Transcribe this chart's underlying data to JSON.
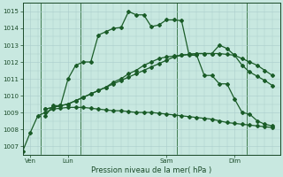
{
  "title": "Pression niveau de la mer( hPa )",
  "bg_color": "#c8e8e0",
  "plot_bg": "#c8e8e0",
  "grid_color": "#aacccc",
  "line_color": "#1a5c28",
  "ylim": [
    1006.5,
    1015.5
  ],
  "yticks": [
    1007,
    1008,
    1009,
    1010,
    1011,
    1012,
    1013,
    1014,
    1015
  ],
  "xlim": [
    0,
    17
  ],
  "day_labels": [
    "Ven",
    "Lun",
    "Sam",
    "Dim"
  ],
  "day_positions": [
    0.5,
    3.0,
    9.5,
    14.0
  ],
  "vline_positions": [
    1.2,
    3.8,
    10.2,
    14.8
  ],
  "series1_x": [
    0,
    0.5,
    1.0,
    1.5,
    2.0,
    2.5,
    3.0,
    3.5,
    4.0,
    4.5,
    5.0,
    5.5,
    6.0,
    6.5,
    7.0,
    7.5,
    8.0,
    8.5,
    9.0,
    9.5,
    10.0,
    10.5,
    11.0,
    11.5,
    12.0,
    12.5,
    13.0,
    13.5,
    14.0,
    14.5,
    15.0,
    15.5,
    16.0,
    16.5
  ],
  "series1_y": [
    1006.7,
    1007.8,
    1008.8,
    1009.0,
    1009.2,
    1009.25,
    1009.3,
    1009.3,
    1009.3,
    1009.25,
    1009.2,
    1009.15,
    1009.1,
    1009.1,
    1009.05,
    1009.0,
    1009.0,
    1009.0,
    1008.95,
    1008.9,
    1008.85,
    1008.8,
    1008.75,
    1008.7,
    1008.65,
    1008.6,
    1008.5,
    1008.4,
    1008.35,
    1008.3,
    1008.25,
    1008.2,
    1008.15,
    1008.1
  ],
  "series2_x": [
    1.5,
    2.0,
    2.5,
    3.0,
    3.5,
    4.0,
    4.5,
    5.0,
    5.5,
    6.0,
    6.5,
    7.0,
    7.5,
    8.0,
    8.5,
    9.0,
    9.5,
    10.0,
    10.5,
    11.0,
    11.5,
    12.0,
    12.5,
    13.0,
    13.5,
    14.0,
    14.5,
    15.0,
    15.5,
    16.0,
    16.5
  ],
  "series2_y": [
    1008.8,
    1009.4,
    1009.4,
    1011.0,
    1011.8,
    1012.0,
    1012.0,
    1013.6,
    1013.8,
    1014.0,
    1014.05,
    1015.0,
    1014.8,
    1014.8,
    1014.1,
    1014.2,
    1014.5,
    1014.5,
    1014.45,
    1012.4,
    1012.4,
    1011.2,
    1011.2,
    1010.7,
    1010.7,
    1009.8,
    1009.0,
    1008.9,
    1008.5,
    1008.3,
    1008.2
  ],
  "series3_x": [
    1.5,
    2.0,
    2.5,
    3.0,
    3.5,
    4.0,
    4.5,
    5.0,
    5.5,
    6.0,
    6.5,
    7.0,
    7.5,
    8.0,
    8.5,
    9.0,
    9.5,
    10.0,
    10.5,
    11.0,
    11.5,
    12.0,
    12.5,
    13.0,
    13.5,
    14.0,
    14.5,
    15.0,
    15.5,
    16.0,
    16.5
  ],
  "series3_y": [
    1009.2,
    1009.3,
    1009.4,
    1009.5,
    1009.7,
    1009.9,
    1010.1,
    1010.3,
    1010.5,
    1010.8,
    1011.0,
    1011.3,
    1011.5,
    1011.8,
    1012.0,
    1012.2,
    1012.3,
    1012.35,
    1012.4,
    1012.45,
    1012.5,
    1012.5,
    1012.5,
    1013.0,
    1012.8,
    1012.4,
    1011.8,
    1011.4,
    1011.15,
    1010.9,
    1010.6
  ],
  "series4_x": [
    1.5,
    2.0,
    2.5,
    3.0,
    3.5,
    4.0,
    4.5,
    5.0,
    5.5,
    6.0,
    6.5,
    7.0,
    7.5,
    8.0,
    8.5,
    9.0,
    9.5,
    10.0,
    10.5,
    11.0,
    11.5,
    12.0,
    12.5,
    13.0,
    13.5,
    14.0,
    14.5,
    15.0,
    15.5,
    16.0,
    16.5
  ],
  "series4_y": [
    1009.2,
    1009.3,
    1009.4,
    1009.5,
    1009.7,
    1009.9,
    1010.1,
    1010.3,
    1010.5,
    1010.7,
    1010.9,
    1011.1,
    1011.3,
    1011.5,
    1011.7,
    1011.9,
    1012.1,
    1012.3,
    1012.4,
    1012.45,
    1012.5,
    1012.5,
    1012.5,
    1012.5,
    1012.45,
    1012.4,
    1012.2,
    1012.0,
    1011.8,
    1011.5,
    1011.2
  ]
}
